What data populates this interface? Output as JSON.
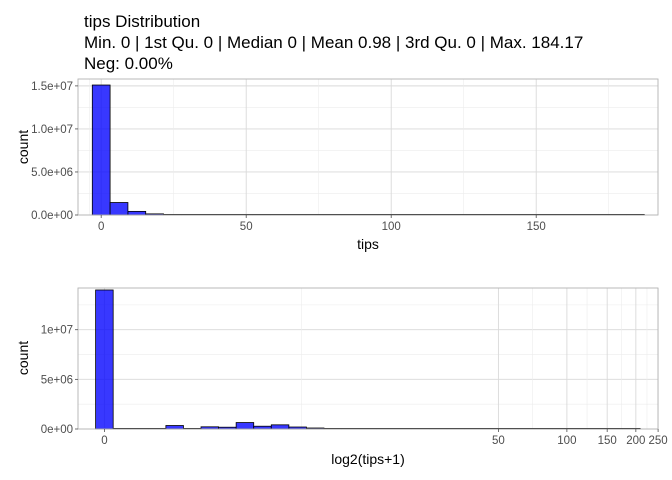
{
  "figure": {
    "title_line1": "tips Distribution",
    "title_line2": "Min. 0 | 1st Qu. 0 | Median 0 | Mean 0.98 | 3rd Qu. 0 | Max. 184.17",
    "title_line3": "Neg: 0.00%"
  },
  "colors": {
    "bar_fill": "#0000ff",
    "bar_opacity": 0.78,
    "bar_stroke": "#000000",
    "grid": "#d9d9d9",
    "border": "#b3b3b3"
  },
  "chart_data": [
    {
      "type": "bar",
      "subtype": "histogram",
      "xlabel": "tips",
      "ylabel": "count",
      "xlim": [
        -8,
        192
      ],
      "ylim": [
        0,
        15800000
      ],
      "x_ticks": [
        0,
        50,
        100,
        150
      ],
      "x_tick_labels": [
        "0",
        "50",
        "100",
        "150"
      ],
      "y_ticks": [
        0,
        5000000,
        10000000,
        15000000
      ],
      "y_tick_labels": [
        "0.0e+00",
        "5.0e+06",
        "1.0e+07",
        "1.5e+07"
      ],
      "bin_width": 6.14,
      "bin_centers": [
        0,
        6.14,
        12.28,
        18.42,
        24.56,
        30.7,
        36.84,
        42.98,
        49.12,
        55.26,
        61.4,
        67.54,
        73.68,
        79.82,
        85.96,
        92.1,
        98.24,
        104.38,
        110.52,
        116.66,
        122.8,
        128.94,
        135.08,
        141.22,
        147.36,
        153.5,
        159.64,
        165.78,
        171.92,
        178.06,
        184.2
      ],
      "values": [
        15100000,
        1450000,
        420000,
        130000,
        40000,
        12000,
        5000,
        2000,
        1000,
        500,
        300,
        200,
        100,
        100,
        50,
        50,
        30,
        20,
        20,
        10,
        10,
        10,
        5,
        5,
        5,
        2,
        2,
        2,
        1,
        1,
        1
      ],
      "grid": true
    },
    {
      "type": "bar",
      "subtype": "histogram",
      "xlabel": "log2(tips+1)",
      "ylabel": "count",
      "x_scale": "log2(x+1)",
      "xlim": [
        -0.38,
        7.97
      ],
      "ylim": [
        0,
        14200000
      ],
      "x_ticks": [
        0,
        50,
        100,
        150,
        200,
        250
      ],
      "x_tick_labels": [
        "0",
        "50",
        "100",
        "150",
        "200",
        "250"
      ],
      "y_ticks": [
        0,
        5000000,
        10000000
      ],
      "y_tick_labels": [
        "0e+00",
        "5e+06",
        "1e+07"
      ],
      "bin_width": 0.2529,
      "bin_centers": [
        0,
        0.2529,
        0.5058,
        0.7587,
        1.0116,
        1.2645,
        1.5174,
        1.7703,
        2.0232,
        2.2761,
        2.529,
        2.7819,
        3.0348,
        3.2877,
        3.5406,
        3.7935,
        4.0464,
        4.2993,
        4.5522,
        4.8051,
        5.058,
        5.3109,
        5.5638,
        5.8167,
        6.0696,
        6.3225,
        6.5754,
        6.8283,
        7.0812,
        7.3341,
        7.587
      ],
      "values": [
        14000000,
        0,
        0,
        20000,
        350000,
        0,
        220000,
        180000,
        650000,
        280000,
        420000,
        200000,
        100000,
        60000,
        20000,
        8000,
        3000,
        1000,
        500,
        200,
        100,
        50,
        20,
        10,
        5,
        3,
        2,
        2,
        1,
        1,
        1
      ],
      "grid": true
    }
  ]
}
